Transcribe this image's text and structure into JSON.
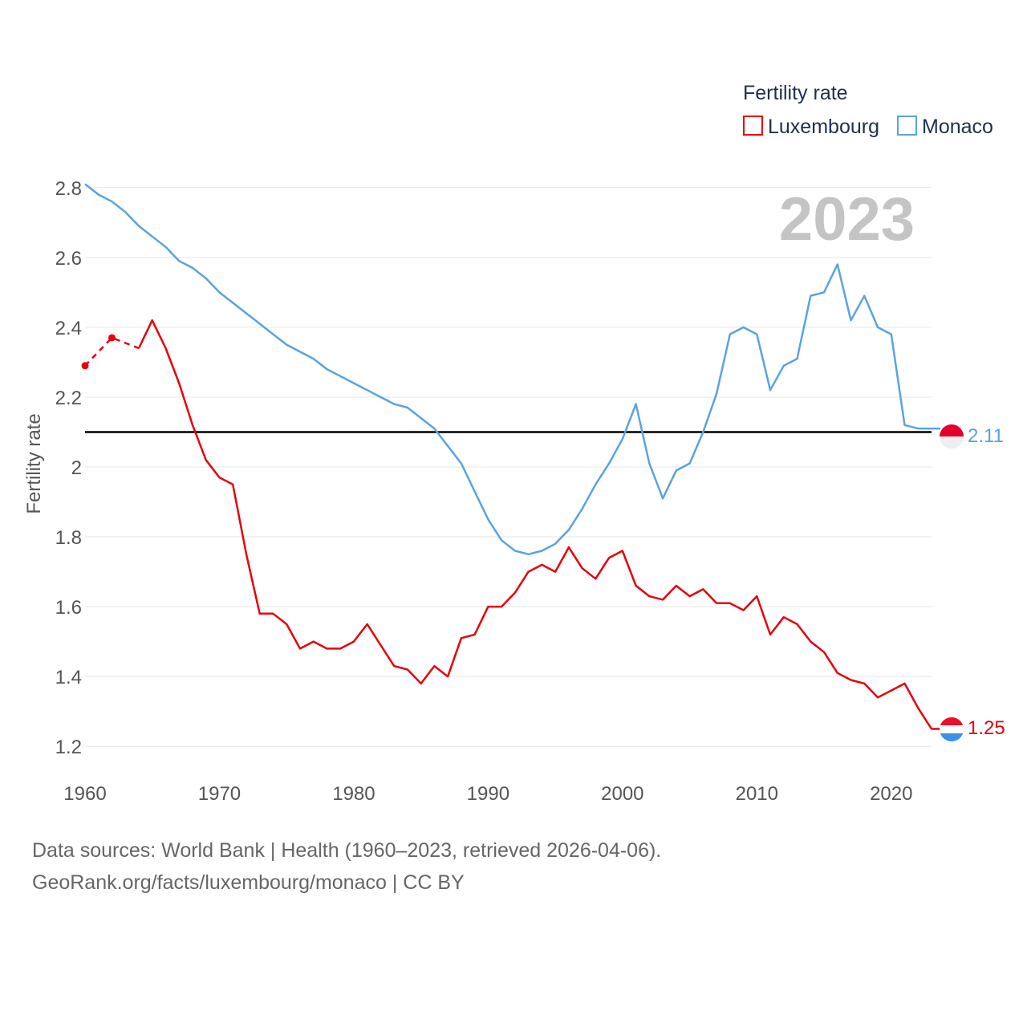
{
  "chart_data": {
    "type": "line",
    "legend_title": "Fertility rate",
    "ylabel": "Fertility rate",
    "year_label": "2023",
    "xlim": [
      1960,
      2023
    ],
    "ylim": [
      1.15,
      2.85
    ],
    "xticks": [
      1960,
      1970,
      1980,
      1990,
      2000,
      2010,
      2020
    ],
    "yticks": [
      1.2,
      1.4,
      1.6,
      1.8,
      2,
      2.2,
      2.4,
      2.6,
      2.8
    ],
    "reference_line": 2.1,
    "series": [
      {
        "name": "Luxembourg",
        "color": "#e8000b",
        "end_label": "1.25",
        "flag_colors": [
          "#e8112d",
          "#ffffff",
          "#3d8fe8"
        ],
        "dashed_points": [
          [
            1960,
            2.29
          ],
          [
            1962,
            2.37
          ],
          [
            1964,
            2.34
          ]
        ],
        "points": [
          [
            1964,
            2.34
          ],
          [
            1965,
            2.42
          ],
          [
            1966,
            2.34
          ],
          [
            1967,
            2.24
          ],
          [
            1968,
            2.12
          ],
          [
            1969,
            2.02
          ],
          [
            1970,
            1.97
          ],
          [
            1971,
            1.95
          ],
          [
            1972,
            1.75
          ],
          [
            1973,
            1.58
          ],
          [
            1974,
            1.58
          ],
          [
            1975,
            1.55
          ],
          [
            1976,
            1.48
          ],
          [
            1977,
            1.5
          ],
          [
            1978,
            1.48
          ],
          [
            1979,
            1.48
          ],
          [
            1980,
            1.5
          ],
          [
            1981,
            1.55
          ],
          [
            1982,
            1.49
          ],
          [
            1983,
            1.43
          ],
          [
            1984,
            1.42
          ],
          [
            1985,
            1.38
          ],
          [
            1986,
            1.43
          ],
          [
            1987,
            1.4
          ],
          [
            1988,
            1.51
          ],
          [
            1989,
            1.52
          ],
          [
            1990,
            1.6
          ],
          [
            1991,
            1.6
          ],
          [
            1992,
            1.64
          ],
          [
            1993,
            1.7
          ],
          [
            1994,
            1.72
          ],
          [
            1995,
            1.7
          ],
          [
            1996,
            1.77
          ],
          [
            1997,
            1.71
          ],
          [
            1998,
            1.68
          ],
          [
            1999,
            1.74
          ],
          [
            2000,
            1.76
          ],
          [
            2001,
            1.66
          ],
          [
            2002,
            1.63
          ],
          [
            2003,
            1.62
          ],
          [
            2004,
            1.66
          ],
          [
            2005,
            1.63
          ],
          [
            2006,
            1.65
          ],
          [
            2007,
            1.61
          ],
          [
            2008,
            1.61
          ],
          [
            2009,
            1.59
          ],
          [
            2010,
            1.63
          ],
          [
            2011,
            1.52
          ],
          [
            2012,
            1.57
          ],
          [
            2013,
            1.55
          ],
          [
            2014,
            1.5
          ],
          [
            2015,
            1.47
          ],
          [
            2016,
            1.41
          ],
          [
            2017,
            1.39
          ],
          [
            2018,
            1.38
          ],
          [
            2019,
            1.34
          ],
          [
            2020,
            1.36
          ],
          [
            2021,
            1.38
          ],
          [
            2022,
            1.31
          ],
          [
            2023,
            1.25
          ]
        ]
      },
      {
        "name": "Monaco",
        "color": "#5aa3e0",
        "end_label": "2.11",
        "flag_colors": [
          "#e4002b",
          "#eeeeee"
        ],
        "points": [
          [
            1960,
            2.81
          ],
          [
            1961,
            2.78
          ],
          [
            1962,
            2.76
          ],
          [
            1963,
            2.73
          ],
          [
            1964,
            2.69
          ],
          [
            1965,
            2.66
          ],
          [
            1966,
            2.63
          ],
          [
            1967,
            2.59
          ],
          [
            1968,
            2.57
          ],
          [
            1969,
            2.54
          ],
          [
            1970,
            2.5
          ],
          [
            1971,
            2.47
          ],
          [
            1972,
            2.44
          ],
          [
            1973,
            2.41
          ],
          [
            1974,
            2.38
          ],
          [
            1975,
            2.35
          ],
          [
            1976,
            2.33
          ],
          [
            1977,
            2.31
          ],
          [
            1978,
            2.28
          ],
          [
            1979,
            2.26
          ],
          [
            1980,
            2.24
          ],
          [
            1981,
            2.22
          ],
          [
            1982,
            2.2
          ],
          [
            1983,
            2.18
          ],
          [
            1984,
            2.17
          ],
          [
            1985,
            2.14
          ],
          [
            1986,
            2.11
          ],
          [
            1987,
            2.06
          ],
          [
            1988,
            2.01
          ],
          [
            1989,
            1.93
          ],
          [
            1990,
            1.85
          ],
          [
            1991,
            1.79
          ],
          [
            1992,
            1.76
          ],
          [
            1993,
            1.75
          ],
          [
            1994,
            1.76
          ],
          [
            1995,
            1.78
          ],
          [
            1996,
            1.82
          ],
          [
            1997,
            1.88
          ],
          [
            1998,
            1.95
          ],
          [
            1999,
            2.01
          ],
          [
            2000,
            2.08
          ],
          [
            2001,
            2.18
          ],
          [
            2002,
            2.01
          ],
          [
            2003,
            1.91
          ],
          [
            2004,
            1.99
          ],
          [
            2005,
            2.01
          ],
          [
            2006,
            2.1
          ],
          [
            2007,
            2.21
          ],
          [
            2008,
            2.38
          ],
          [
            2009,
            2.4
          ],
          [
            2010,
            2.38
          ],
          [
            2011,
            2.22
          ],
          [
            2012,
            2.29
          ],
          [
            2013,
            2.31
          ],
          [
            2014,
            2.49
          ],
          [
            2015,
            2.5
          ],
          [
            2016,
            2.58
          ],
          [
            2017,
            2.42
          ],
          [
            2018,
            2.49
          ],
          [
            2019,
            2.4
          ],
          [
            2020,
            2.38
          ],
          [
            2021,
            2.12
          ],
          [
            2022,
            2.11
          ],
          [
            2023,
            2.11
          ]
        ]
      }
    ]
  },
  "footer": {
    "line1": "Data sources: World Bank | Health (1960–2023, retrieved 2026-04-06).",
    "line2": "GeoRank.org/facts/luxembourg/monaco | CC BY"
  }
}
